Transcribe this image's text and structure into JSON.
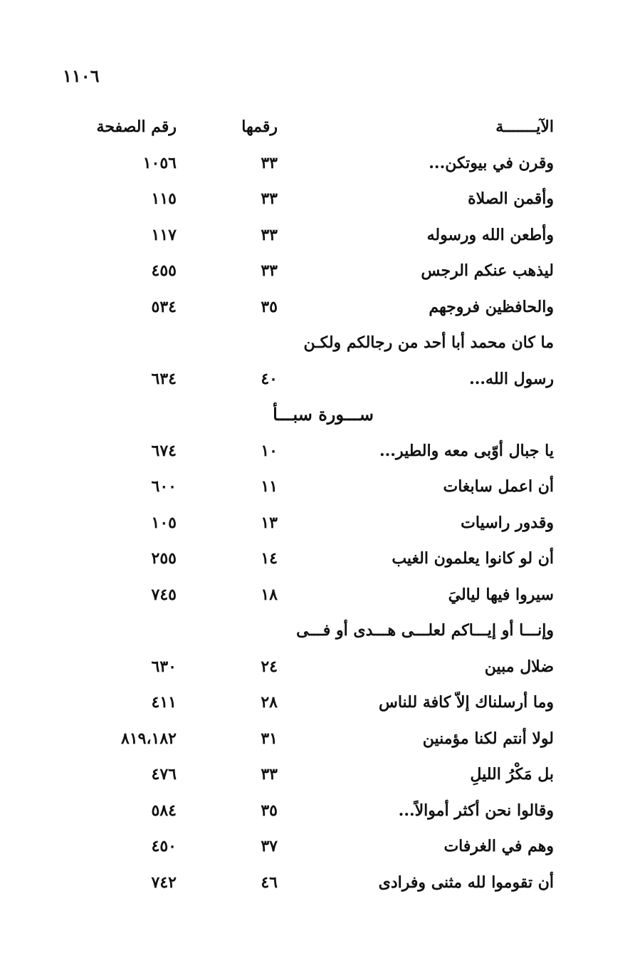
{
  "page_number": "١١٠٦",
  "header": {
    "verse": "الآيـــــــة",
    "verse_number": "رقمها",
    "page": "رقم الصفحة"
  },
  "rows": [
    {
      "text": "وقرن في بيوتكن...",
      "ayah": "٣٣",
      "page": "١٠٥٦"
    },
    {
      "text": "وأقمن الصلاة",
      "ayah": "٣٣",
      "page": "١١٥"
    },
    {
      "text": "وأطعن الله ورسوله",
      "ayah": "٣٣",
      "page": "١١٧"
    },
    {
      "text": "ليذهب عنكم الرجس",
      "ayah": "٣٣",
      "page": "٤٥٥"
    },
    {
      "text": "والحافظين فروجهم",
      "ayah": "٣٥",
      "page": "٥٣٤"
    },
    {
      "text": "ما كان محمد أبا أحد من رجالكم  ولكـن"
    },
    {
      "text": "رسول الله...",
      "ayah": "٤٠",
      "page": "٦٣٤"
    },
    {
      "section": "ســـورة سبـــأ"
    },
    {
      "text": "يا جبال أوّبى معه والطير...",
      "ayah": "١٠",
      "page": "٦٧٤"
    },
    {
      "text": "أن اعمل سابغات",
      "ayah": "١١",
      "page": "٦٠٠"
    },
    {
      "text": "وقدور راسيات",
      "ayah": "١٣",
      "page": "١٠٥"
    },
    {
      "text": "أن لو كانوا يعلمون الغيب",
      "ayah": "١٤",
      "page": "٢٥٥"
    },
    {
      "text": "سيروا فيها لياليَ",
      "ayah": "١٨",
      "page": "٧٤٥"
    },
    {
      "text": "وإنـــا أو إيـــاكم لعلـــى هـــدى أو فـــى"
    },
    {
      "text": "ضلال مبين",
      "ayah": "٢٤",
      "page": "٦٣٠"
    },
    {
      "text": "وما أرسلناك إلاّ كافة للناس",
      "ayah": "٢٨",
      "page": "٤١١"
    },
    {
      "text": "لولا أنتم لكنا مؤمنين",
      "ayah": "٣١",
      "page": "٨١٩،١٨٢"
    },
    {
      "text": "بل مَكْرُ الليلِ",
      "ayah": "٣٣",
      "page": "٤٧٦"
    },
    {
      "text": "وقالوا نحن أكثر أموالاً...",
      "ayah": "٣٥",
      "page": "٥٨٤"
    },
    {
      "text": "وهم في الغرفات",
      "ayah": "٣٧",
      "page": "٤٥٠"
    },
    {
      "text": "أن تقوموا لله مثنى وفرادى",
      "ayah": "٤٦",
      "page": "٧٤٢"
    }
  ]
}
